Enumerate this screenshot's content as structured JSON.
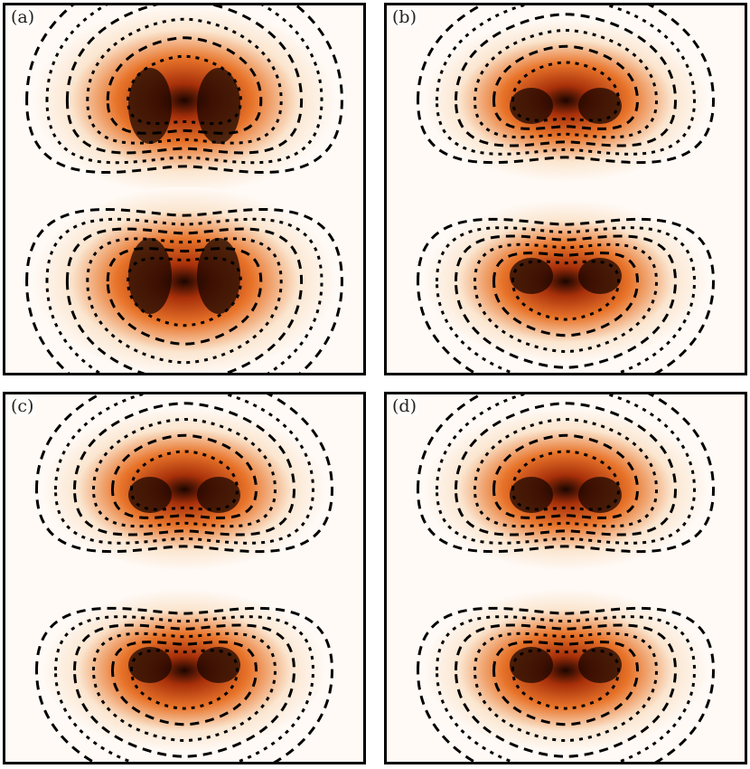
{
  "panels": [
    {
      "id": "a",
      "label": "(a)",
      "variant": "tall"
    },
    {
      "id": "b",
      "label": "(b)",
      "variant": "round"
    },
    {
      "id": "c",
      "label": "(c)",
      "variant": "round"
    },
    {
      "id": "d",
      "label": "(d)",
      "variant": "round"
    }
  ],
  "colors": {
    "background": "#fffaf6",
    "low": "#fbe6d0",
    "mid": "#e8742a",
    "high": "#a8300a",
    "peak": "#1a0500",
    "contour": "#000000"
  }
}
